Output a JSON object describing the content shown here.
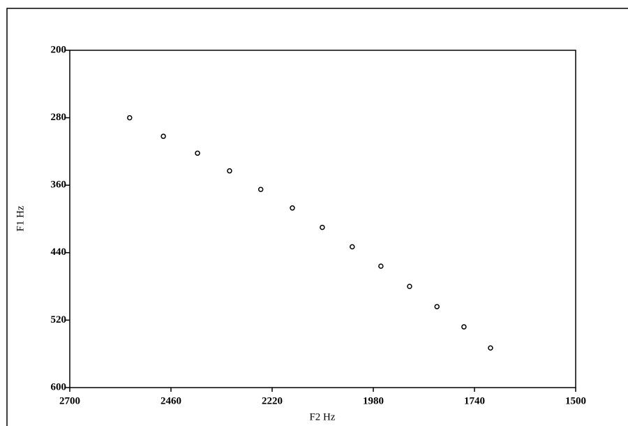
{
  "chart_data": {
    "type": "scatter",
    "x_label": "F2  Hz",
    "y_label": "F1  Hz",
    "series": [
      {
        "color": "#000000",
        "x": [
          2558,
          2478,
          2397,
          2321,
          2247,
          2172,
          2101,
          2030,
          1962,
          1894,
          1829,
          1765,
          1702
        ],
        "values": [
          280,
          302,
          322,
          343,
          365,
          387,
          410,
          433,
          456,
          480,
          504,
          528,
          553
        ]
      }
    ],
    "xlim": [
      2700,
      1500
    ],
    "xticks": [
      2700,
      2460,
      2220,
      1980,
      1740,
      1500
    ],
    "ylim": [
      600,
      200
    ],
    "yticks": [
      200,
      280,
      360,
      440,
      520,
      600
    ]
  }
}
